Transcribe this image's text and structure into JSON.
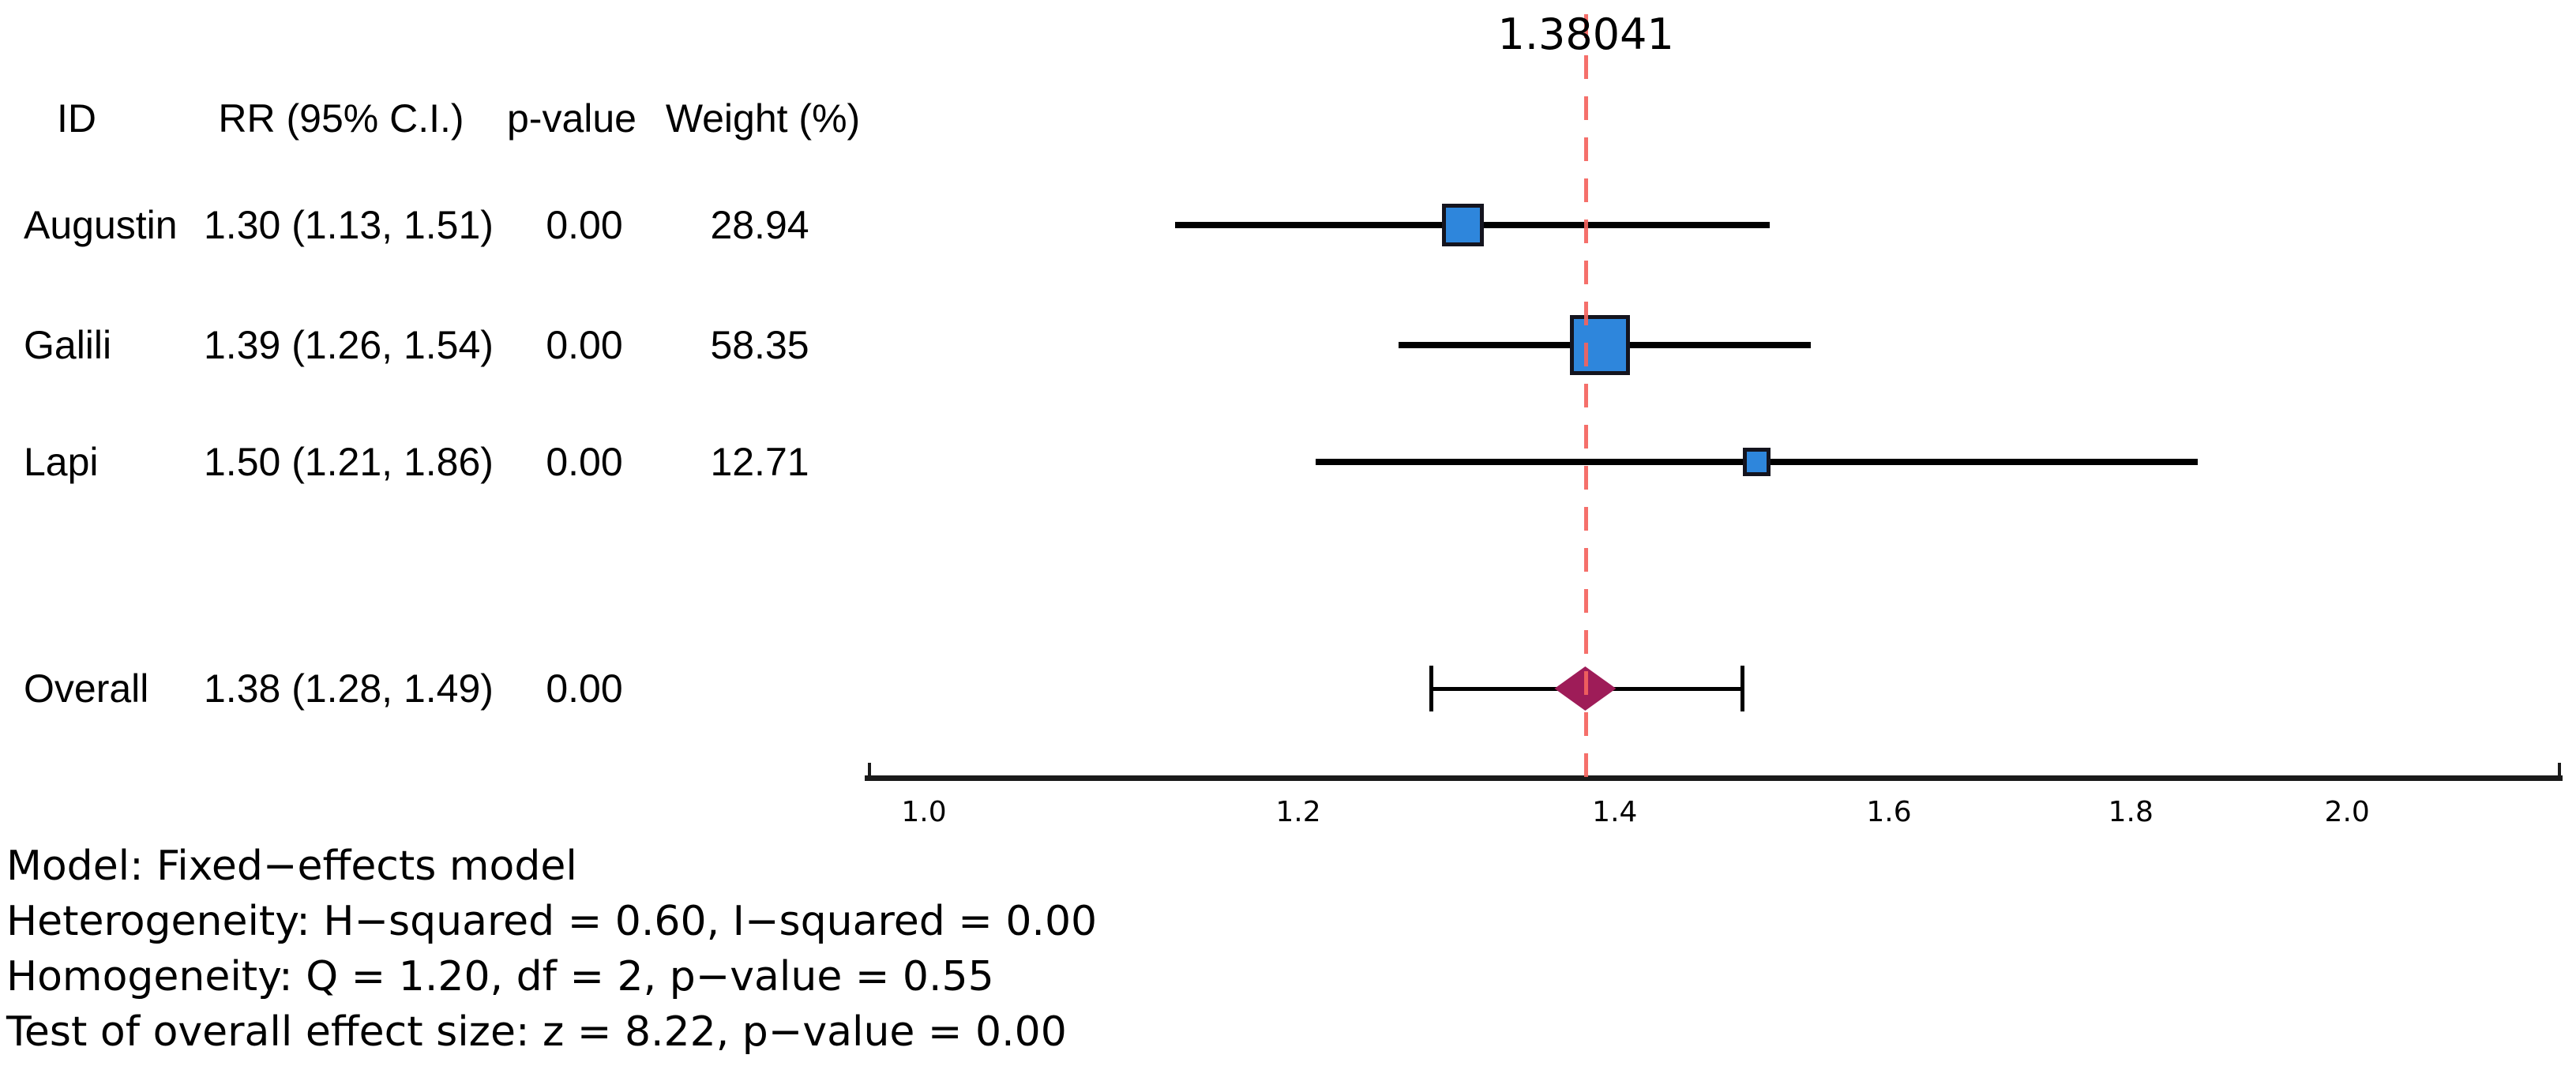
{
  "chart_data": {
    "type": "forest",
    "xscale": "log",
    "effect_label": "1.38041",
    "effect_line_value": 1.38041,
    "columns": [
      "ID",
      "RR (95% C.I.)",
      "p-value",
      "Weight (%)"
    ],
    "studies": [
      {
        "id": "Augustin",
        "rr": 1.3,
        "ci_low": 1.13,
        "ci_high": 1.51,
        "rr_text": "1.30 (1.13, 1.51)",
        "p_value": "0.00",
        "weight": 28.94,
        "weight_text": "28.94"
      },
      {
        "id": "Galili",
        "rr": 1.39,
        "ci_low": 1.26,
        "ci_high": 1.54,
        "rr_text": "1.39 (1.26, 1.54)",
        "p_value": "0.00",
        "weight": 58.35,
        "weight_text": "58.35"
      },
      {
        "id": "Lapi",
        "rr": 1.5,
        "ci_low": 1.21,
        "ci_high": 1.86,
        "rr_text": "1.50 (1.21, 1.86)",
        "p_value": "0.00",
        "weight": 12.71,
        "weight_text": "12.71"
      }
    ],
    "overall": {
      "id": "Overall",
      "rr": 1.38,
      "ci_low": 1.28,
      "ci_high": 1.49,
      "rr_text": "1.38 (1.28, 1.49)",
      "p_value": "0.00"
    },
    "x_ticks": [
      1.0,
      1.2,
      1.4,
      1.6,
      1.8,
      2.0
    ],
    "x_tick_labels": [
      "1.0",
      "1.2",
      "1.4",
      "1.6",
      "1.8",
      "2.0"
    ],
    "axis_range_approx": [
      0.97,
      2.22
    ],
    "footnotes": [
      "Model: Fixed−effects model",
      "Heterogeneity: H−squared = 0.60, I−squared = 0.00",
      "Homogeneity: Q = 1.20, df = 2, p−value = 0.55",
      "Test of overall effect size: z = 8.22, p−value = 0.00"
    ],
    "colors": {
      "study_marker": "#2e86dc",
      "marker_border": "#14141e",
      "overall_diamond": "#9e1c58",
      "effect_line": "#f4635e",
      "axis": "#1a1a1a",
      "ci_line": "#000000"
    }
  }
}
